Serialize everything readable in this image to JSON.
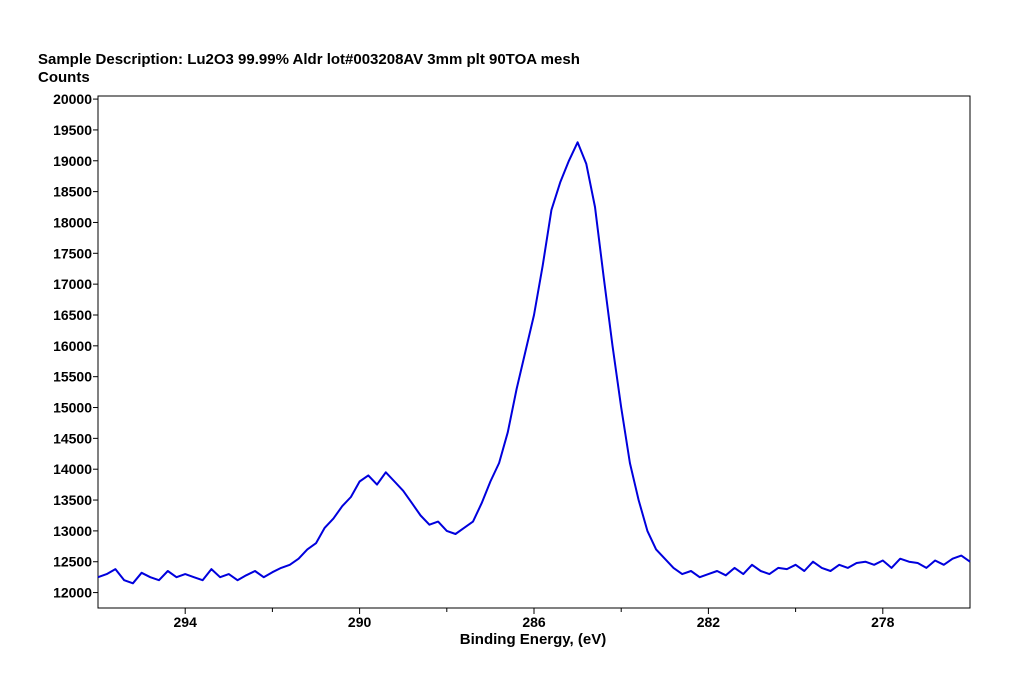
{
  "chart_data": {
    "type": "line",
    "title": "Sample Description:  Lu2O3 99.99% Aldr lot#003208AV 3mm plt 90TOA mesh",
    "ylabel": "Counts",
    "xlabel": "Binding Energy, (eV)",
    "xlim": [
      296.0,
      276.0
    ],
    "ylim": [
      11750,
      20050
    ],
    "x_reversed": true,
    "grid": false,
    "legend": "none",
    "x_ticks": [
      {
        "value": 294,
        "label": "294"
      },
      {
        "value": 290,
        "label": "290"
      },
      {
        "value": 286,
        "label": "286"
      },
      {
        "value": 282,
        "label": "282"
      },
      {
        "value": 278,
        "label": "278"
      }
    ],
    "x_minor_ticks": [
      292,
      288,
      284,
      280
    ],
    "y_ticks": [
      {
        "value": 12000,
        "label": "12000"
      },
      {
        "value": 12500,
        "label": "12500"
      },
      {
        "value": 13000,
        "label": "13000"
      },
      {
        "value": 13500,
        "label": "13500"
      },
      {
        "value": 14000,
        "label": "14000"
      },
      {
        "value": 14500,
        "label": "14500"
      },
      {
        "value": 15000,
        "label": "15000"
      },
      {
        "value": 15500,
        "label": "15500"
      },
      {
        "value": 16000,
        "label": "16000"
      },
      {
        "value": 16500,
        "label": "16500"
      },
      {
        "value": 17000,
        "label": "17000"
      },
      {
        "value": 17500,
        "label": "17500"
      },
      {
        "value": 18000,
        "label": "18000"
      },
      {
        "value": 18500,
        "label": "18500"
      },
      {
        "value": 19000,
        "label": "19000"
      },
      {
        "value": 19500,
        "label": "19500"
      },
      {
        "value": 20000,
        "label": "20000"
      }
    ],
    "series": [
      {
        "color": "#0000dd",
        "x": [
          296.0,
          295.8,
          295.6,
          295.4,
          295.2,
          295.0,
          294.8,
          294.6,
          294.4,
          294.2,
          294.0,
          293.8,
          293.6,
          293.4,
          293.2,
          293.0,
          292.8,
          292.6,
          292.4,
          292.2,
          292.0,
          291.8,
          291.6,
          291.4,
          291.2,
          291.0,
          290.8,
          290.6,
          290.4,
          290.2,
          290.0,
          289.8,
          289.6,
          289.4,
          289.2,
          289.0,
          288.8,
          288.6,
          288.4,
          288.2,
          288.0,
          287.8,
          287.6,
          287.4,
          287.2,
          287.0,
          286.8,
          286.6,
          286.4,
          286.2,
          286.0,
          285.8,
          285.6,
          285.4,
          285.2,
          285.0,
          284.8,
          284.6,
          284.4,
          284.2,
          284.0,
          283.8,
          283.6,
          283.4,
          283.2,
          283.0,
          282.8,
          282.6,
          282.4,
          282.2,
          282.0,
          281.8,
          281.6,
          281.4,
          281.2,
          281.0,
          280.8,
          280.6,
          280.4,
          280.2,
          280.0,
          279.8,
          279.6,
          279.4,
          279.2,
          279.0,
          278.8,
          278.6,
          278.4,
          278.2,
          278.0,
          277.8,
          277.6,
          277.4,
          277.2,
          277.0,
          276.8,
          276.6,
          276.4,
          276.2,
          276.0
        ],
        "y": [
          12250,
          12300,
          12380,
          12200,
          12150,
          12320,
          12250,
          12200,
          12350,
          12250,
          12300,
          12250,
          12200,
          12380,
          12250,
          12300,
          12200,
          12280,
          12350,
          12250,
          12330,
          12400,
          12450,
          12550,
          12700,
          12800,
          13050,
          13200,
          13400,
          13550,
          13800,
          13900,
          13750,
          13950,
          13800,
          13650,
          13450,
          13250,
          13100,
          13150,
          13000,
          12950,
          13050,
          13150,
          13450,
          13800,
          14100,
          14600,
          15300,
          15900,
          16500,
          17300,
          18200,
          18650,
          19000,
          19300,
          18950,
          18250,
          17100,
          16000,
          15000,
          14100,
          13500,
          13000,
          12700,
          12550,
          12400,
          12300,
          12350,
          12250,
          12300,
          12350,
          12280,
          12400,
          12300,
          12450,
          12350,
          12300,
          12400,
          12380,
          12450,
          12350,
          12500,
          12400,
          12350,
          12450,
          12400,
          12480,
          12500,
          12450,
          12520,
          12400,
          12550,
          12500,
          12480,
          12400,
          12520,
          12450,
          12550,
          12600,
          12500
        ]
      }
    ]
  }
}
